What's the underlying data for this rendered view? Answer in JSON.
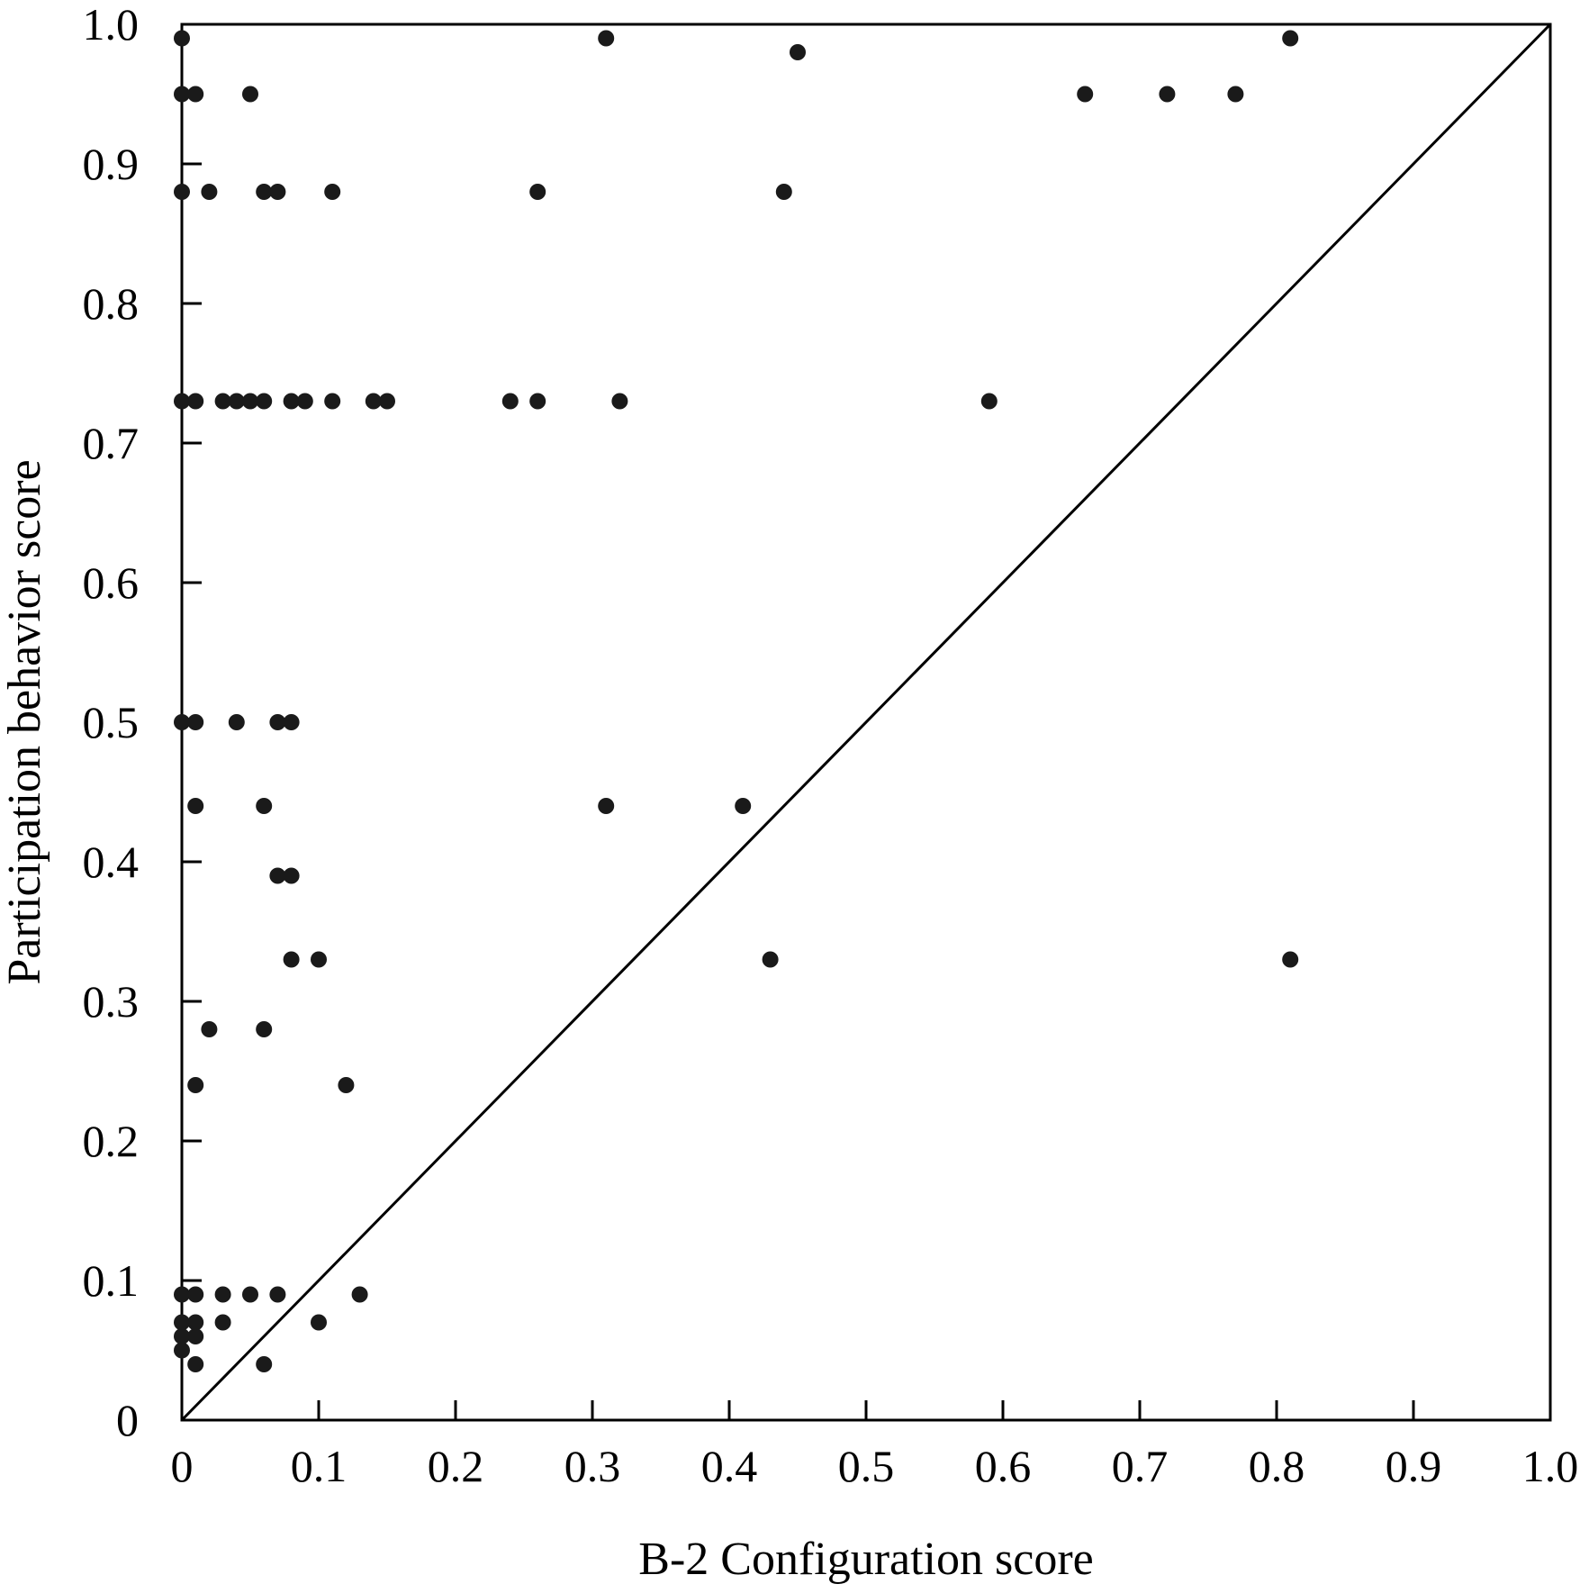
{
  "chart_data": {
    "type": "scatter",
    "title": "",
    "xlabel": "B-2 Configuration score",
    "ylabel": "Participation behavior score",
    "xlim": [
      0,
      1.0
    ],
    "ylim": [
      0,
      1.0
    ],
    "xticks": [
      "0",
      "0.1",
      "0.2",
      "0.3",
      "0.4",
      "0.5",
      "0.6",
      "0.7",
      "0.8",
      "0.9",
      "1.0"
    ],
    "yticks": [
      "0",
      "0.1",
      "0.2",
      "0.3",
      "0.4",
      "0.5",
      "0.6",
      "0.7",
      "0.8",
      "0.9",
      "1.0"
    ],
    "grid": false,
    "reference_line": {
      "from": [
        0,
        0
      ],
      "to": [
        1.0,
        1.0
      ]
    },
    "points": [
      {
        "x": 0.0,
        "y": 0.99
      },
      {
        "x": 0.31,
        "y": 0.99
      },
      {
        "x": 0.45,
        "y": 0.98
      },
      {
        "x": 0.81,
        "y": 0.99
      },
      {
        "x": 0.0,
        "y": 0.95
      },
      {
        "x": 0.01,
        "y": 0.95
      },
      {
        "x": 0.05,
        "y": 0.95
      },
      {
        "x": 0.66,
        "y": 0.95
      },
      {
        "x": 0.72,
        "y": 0.95
      },
      {
        "x": 0.77,
        "y": 0.95
      },
      {
        "x": 0.0,
        "y": 0.88
      },
      {
        "x": 0.02,
        "y": 0.88
      },
      {
        "x": 0.06,
        "y": 0.88
      },
      {
        "x": 0.07,
        "y": 0.88
      },
      {
        "x": 0.11,
        "y": 0.88
      },
      {
        "x": 0.26,
        "y": 0.88
      },
      {
        "x": 0.44,
        "y": 0.88
      },
      {
        "x": 0.0,
        "y": 0.73
      },
      {
        "x": 0.01,
        "y": 0.73
      },
      {
        "x": 0.03,
        "y": 0.73
      },
      {
        "x": 0.04,
        "y": 0.73
      },
      {
        "x": 0.05,
        "y": 0.73
      },
      {
        "x": 0.06,
        "y": 0.73
      },
      {
        "x": 0.08,
        "y": 0.73
      },
      {
        "x": 0.09,
        "y": 0.73
      },
      {
        "x": 0.11,
        "y": 0.73
      },
      {
        "x": 0.14,
        "y": 0.73
      },
      {
        "x": 0.15,
        "y": 0.73
      },
      {
        "x": 0.24,
        "y": 0.73
      },
      {
        "x": 0.26,
        "y": 0.73
      },
      {
        "x": 0.32,
        "y": 0.73
      },
      {
        "x": 0.59,
        "y": 0.73
      },
      {
        "x": 0.0,
        "y": 0.5
      },
      {
        "x": 0.01,
        "y": 0.5
      },
      {
        "x": 0.04,
        "y": 0.5
      },
      {
        "x": 0.07,
        "y": 0.5
      },
      {
        "x": 0.08,
        "y": 0.5
      },
      {
        "x": 0.01,
        "y": 0.44
      },
      {
        "x": 0.06,
        "y": 0.44
      },
      {
        "x": 0.31,
        "y": 0.44
      },
      {
        "x": 0.41,
        "y": 0.44
      },
      {
        "x": 0.07,
        "y": 0.39
      },
      {
        "x": 0.08,
        "y": 0.39
      },
      {
        "x": 0.08,
        "y": 0.33
      },
      {
        "x": 0.1,
        "y": 0.33
      },
      {
        "x": 0.43,
        "y": 0.33
      },
      {
        "x": 0.81,
        "y": 0.33
      },
      {
        "x": 0.02,
        "y": 0.28
      },
      {
        "x": 0.06,
        "y": 0.28
      },
      {
        "x": 0.01,
        "y": 0.24
      },
      {
        "x": 0.12,
        "y": 0.24
      },
      {
        "x": 0.0,
        "y": 0.09
      },
      {
        "x": 0.01,
        "y": 0.09
      },
      {
        "x": 0.03,
        "y": 0.09
      },
      {
        "x": 0.05,
        "y": 0.09
      },
      {
        "x": 0.07,
        "y": 0.09
      },
      {
        "x": 0.13,
        "y": 0.09
      },
      {
        "x": 0.0,
        "y": 0.07
      },
      {
        "x": 0.01,
        "y": 0.07
      },
      {
        "x": 0.03,
        "y": 0.07
      },
      {
        "x": 0.1,
        "y": 0.07
      },
      {
        "x": 0.0,
        "y": 0.06
      },
      {
        "x": 0.01,
        "y": 0.06
      },
      {
        "x": 0.0,
        "y": 0.05
      },
      {
        "x": 0.01,
        "y": 0.04
      },
      {
        "x": 0.06,
        "y": 0.04
      }
    ]
  }
}
